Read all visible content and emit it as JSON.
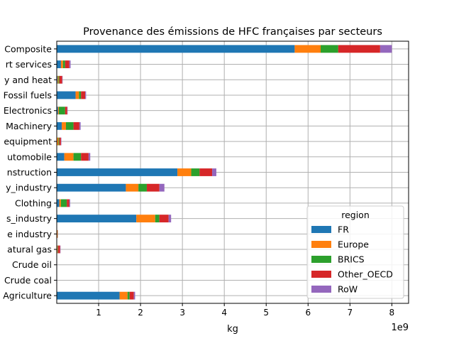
{
  "chart_data": {
    "type": "bar",
    "orientation": "horizontal",
    "stacked": true,
    "title": "Provenance des émissions de HFC françaises par secteurs",
    "xlabel": "kg",
    "ylabel": "",
    "x_offset_text": "1e9",
    "xlim": [
      0,
      8.4
    ],
    "xticks": [
      1,
      2,
      3,
      4,
      5,
      6,
      7,
      8
    ],
    "xtick_labels": [
      "1",
      "2",
      "3",
      "4",
      "5",
      "6",
      "7",
      "8"
    ],
    "grid": true,
    "legend_title": "region",
    "legend_position": "lower right",
    "categories": [
      "Composite",
      "rt services",
      "y and heat",
      "Fossil fuels",
      "Electronics",
      "Machinery",
      "equipment",
      "utomobile",
      "nstruction",
      "y_industry",
      "Clothing",
      "s_industry",
      "e industry",
      "atural gas",
      "Crude oil",
      "Crude coal",
      "Agriculture"
    ],
    "series": [
      {
        "name": "FR",
        "color": "#1f77b4",
        "values": [
          5.68,
          0.1,
          0.02,
          0.45,
          0.03,
          0.12,
          0.01,
          0.18,
          2.88,
          1.65,
          0.06,
          1.9,
          0.005,
          0.01,
          0.002,
          0.002,
          1.5
        ]
      },
      {
        "name": "Europe",
        "color": "#ff7f0e",
        "values": [
          0.62,
          0.05,
          0.02,
          0.08,
          0.02,
          0.1,
          0.03,
          0.22,
          0.33,
          0.3,
          0.04,
          0.45,
          0.015,
          0.01,
          0.002,
          0.002,
          0.19
        ]
      },
      {
        "name": "BRICS",
        "color": "#2ca02c",
        "values": [
          0.42,
          0.05,
          0.02,
          0.05,
          0.15,
          0.18,
          0.02,
          0.18,
          0.2,
          0.2,
          0.14,
          0.1,
          0.003,
          0.01,
          0.002,
          0.002,
          0.05
        ]
      },
      {
        "name": "Other_OECD",
        "color": "#d62728",
        "values": [
          1.0,
          0.1,
          0.07,
          0.1,
          0.05,
          0.14,
          0.04,
          0.18,
          0.3,
          0.3,
          0.06,
          0.22,
          0.003,
          0.05,
          0.002,
          0.002,
          0.1
        ]
      },
      {
        "name": "RoW",
        "color": "#9467bd",
        "values": [
          0.28,
          0.03,
          0.01,
          0.02,
          0.01,
          0.03,
          0.01,
          0.04,
          0.1,
          0.12,
          0.02,
          0.06,
          0.002,
          0.01,
          0.001,
          0.001,
          0.03
        ]
      }
    ]
  }
}
